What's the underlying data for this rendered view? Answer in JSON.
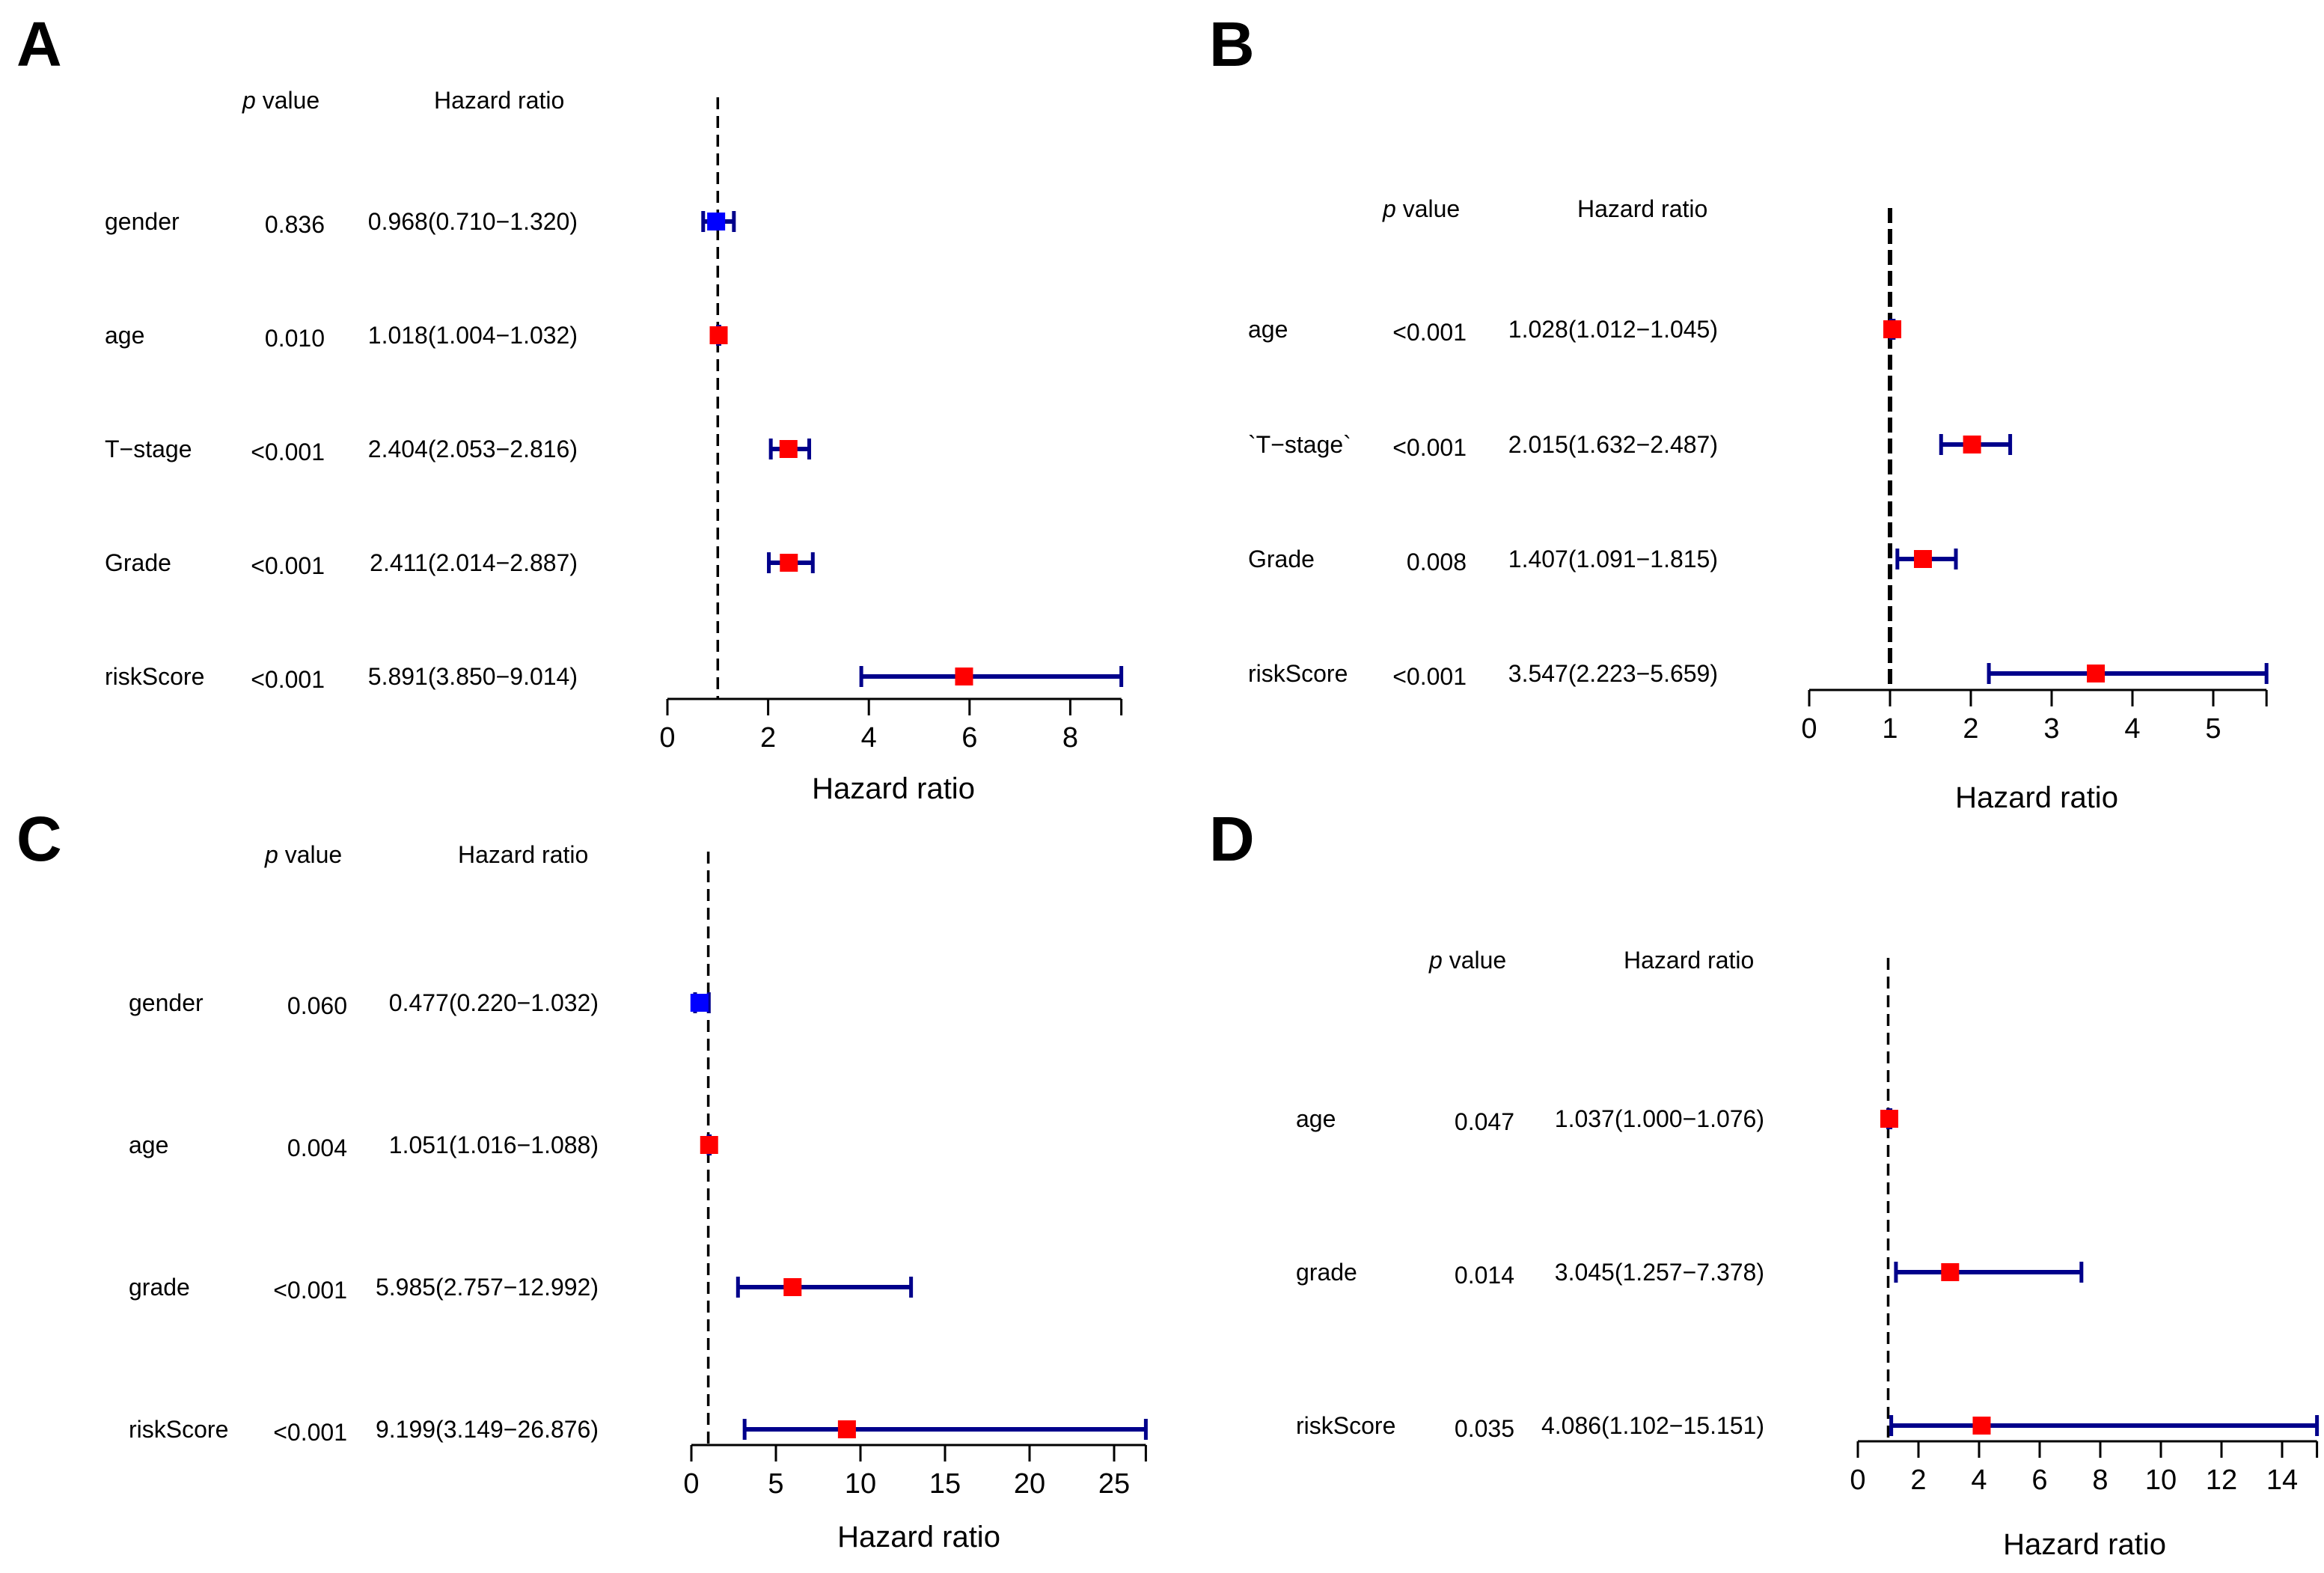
{
  "chart_data": [
    {
      "type": "forest",
      "panel": "A",
      "header_p": "p",
      "header_p_rest": " value",
      "header_hr": "Hazard ratio",
      "xlabel": "Hazard ratio",
      "xticks": [
        0,
        2,
        4,
        6,
        8
      ],
      "xlim": [
        0,
        9.014
      ],
      "reference_line": 1,
      "rows": [
        {
          "variable": "gender",
          "p": "0.836",
          "hr_text": "0.968(0.710−1.320)",
          "hr": 0.968,
          "lower": 0.71,
          "upper": 1.32,
          "color": "#0000ff"
        },
        {
          "variable": "age",
          "p": "0.010",
          "hr_text": "1.018(1.004−1.032)",
          "hr": 1.018,
          "lower": 1.004,
          "upper": 1.032,
          "color": "#ff0000"
        },
        {
          "variable": "T−stage",
          "p": "<0.001",
          "hr_text": "2.404(2.053−2.816)",
          "hr": 2.404,
          "lower": 2.053,
          "upper": 2.816,
          "color": "#ff0000"
        },
        {
          "variable": "Grade",
          "p": "<0.001",
          "hr_text": "2.411(2.014−2.887)",
          "hr": 2.411,
          "lower": 2.014,
          "upper": 2.887,
          "color": "#ff0000"
        },
        {
          "variable": "riskScore",
          "p": "<0.001",
          "hr_text": "5.891(3.850−9.014)",
          "hr": 5.891,
          "lower": 3.85,
          "upper": 9.014,
          "color": "#ff0000"
        }
      ]
    },
    {
      "type": "forest",
      "panel": "B",
      "header_p": "p",
      "header_p_rest": " value",
      "header_hr": "Hazard ratio",
      "xlabel": "Hazard ratio",
      "xticks": [
        0,
        1,
        2,
        3,
        4,
        5
      ],
      "xlim": [
        0,
        5.659
      ],
      "reference_line": 1,
      "rows": [
        {
          "variable": "age",
          "p": "<0.001",
          "hr_text": "1.028(1.012−1.045)",
          "hr": 1.028,
          "lower": 1.012,
          "upper": 1.045,
          "color": "#ff0000"
        },
        {
          "variable": "`T−stage`",
          "p": "<0.001",
          "hr_text": "2.015(1.632−2.487)",
          "hr": 2.015,
          "lower": 1.632,
          "upper": 2.487,
          "color": "#ff0000"
        },
        {
          "variable": "Grade",
          "p": "0.008",
          "hr_text": "1.407(1.091−1.815)",
          "hr": 1.407,
          "lower": 1.091,
          "upper": 1.815,
          "color": "#ff0000"
        },
        {
          "variable": "riskScore",
          "p": "<0.001",
          "hr_text": "3.547(2.223−5.659)",
          "hr": 3.547,
          "lower": 2.223,
          "upper": 5.659,
          "color": "#ff0000"
        }
      ]
    },
    {
      "type": "forest",
      "panel": "C",
      "header_p": "p",
      "header_p_rest": " value",
      "header_hr": "Hazard ratio",
      "xlabel": "Hazard ratio",
      "xticks": [
        0,
        5,
        10,
        15,
        20,
        25
      ],
      "xlim": [
        0,
        26.876
      ],
      "reference_line": 1,
      "rows": [
        {
          "variable": "gender",
          "p": "0.060",
          "hr_text": "0.477(0.220−1.032)",
          "hr": 0.477,
          "lower": 0.22,
          "upper": 1.032,
          "color": "#0000ff"
        },
        {
          "variable": "age",
          "p": "0.004",
          "hr_text": "1.051(1.016−1.088)",
          "hr": 1.051,
          "lower": 1.016,
          "upper": 1.088,
          "color": "#ff0000"
        },
        {
          "variable": "grade",
          "p": "<0.001",
          "hr_text": "5.985(2.757−12.992)",
          "hr": 5.985,
          "lower": 2.757,
          "upper": 12.992,
          "color": "#ff0000"
        },
        {
          "variable": "riskScore",
          "p": "<0.001",
          "hr_text": "9.199(3.149−26.876)",
          "hr": 9.199,
          "lower": 3.149,
          "upper": 26.876,
          "color": "#ff0000"
        }
      ]
    },
    {
      "type": "forest",
      "panel": "D",
      "header_p": "p",
      "header_p_rest": " value",
      "header_hr": "Hazard ratio",
      "xlabel": "Hazard ratio",
      "xticks": [
        0,
        2,
        4,
        6,
        8,
        10,
        12,
        14
      ],
      "xlim": [
        0,
        15.151
      ],
      "reference_line": 1,
      "rows": [
        {
          "variable": "age",
          "p": "0.047",
          "hr_text": "1.037(1.000−1.076)",
          "hr": 1.037,
          "lower": 1.0,
          "upper": 1.076,
          "color": "#ff0000"
        },
        {
          "variable": "grade",
          "p": "0.014",
          "hr_text": "3.045(1.257−7.378)",
          "hr": 3.045,
          "lower": 1.257,
          "upper": 7.378,
          "color": "#ff0000"
        },
        {
          "variable": "riskScore",
          "p": "0.035",
          "hr_text": "4.086(1.102−15.151)",
          "hr": 4.086,
          "lower": 1.102,
          "upper": 15.151,
          "color": "#ff0000"
        }
      ]
    }
  ],
  "colors": {
    "ci_line": "#00008b",
    "reference_line": "#000000",
    "axis": "#000000"
  }
}
